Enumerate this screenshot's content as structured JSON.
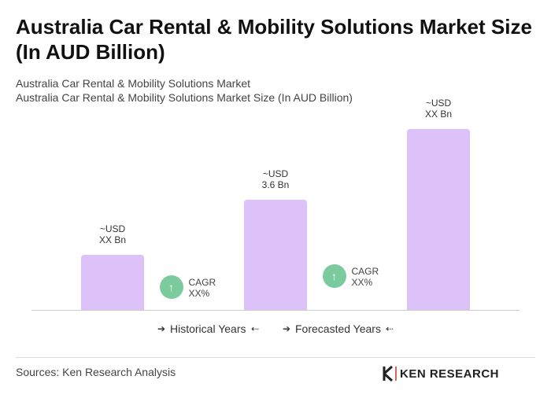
{
  "chart_data": {
    "type": "bar",
    "title": "Australia Car Rental & Mobility Solutions Market Size (In AUD Billion)",
    "subtitle": [
      "Australia Car Rental & Mobility Solutions Market",
      "Australia Car Rental & Mobility Solutions Market Size (In AUD Billion)"
    ],
    "categories": [
      null,
      null,
      null
    ],
    "values": [
      1.8,
      3.6,
      5.9
    ],
    "value_labels": [
      "~USD\nXX Bn",
      "~USD\n3.6 Bn",
      "~USD\nXX Bn"
    ],
    "color": "#dcc2f8",
    "annotations": [
      "CAGR\nXX%",
      "CAGR\nXX%"
    ],
    "annotation_color": "#7ccb9f",
    "periods": [
      "Historical Years",
      "Forecasted Years"
    ],
    "source": "Sources: Ken Research Analysis",
    "logo": "KEN RESEARCH"
  }
}
